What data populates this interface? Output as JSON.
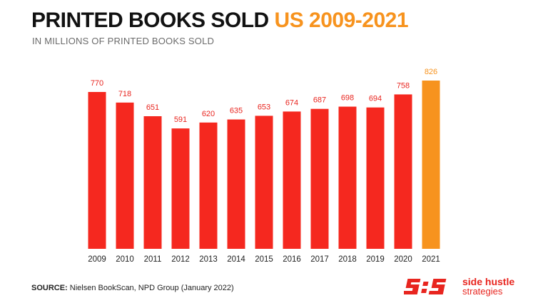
{
  "header": {
    "title_main": "PRINTED BOOKS SOLD ",
    "title_accent": "US 2009-2021",
    "subtitle": "IN MILLIONS OF PRINTED BOOKS SOLD"
  },
  "chart_data": {
    "type": "bar",
    "title": "PRINTED BOOKS SOLD US 2009-2021",
    "subtitle": "IN MILLIONS OF PRINTED BOOKS SOLD",
    "xlabel": "",
    "ylabel": "",
    "categories": [
      "2009",
      "2010",
      "2011",
      "2012",
      "2013",
      "2014",
      "2015",
      "2016",
      "2017",
      "2018",
      "2019",
      "2020",
      "2021"
    ],
    "values": [
      770,
      718,
      651,
      591,
      620,
      635,
      653,
      674,
      687,
      698,
      694,
      758,
      826
    ],
    "ylim": [
      0,
      826
    ],
    "grid": false,
    "highlight_category": "2021",
    "colors": {
      "bar": "#f5281f",
      "highlight": "#f7931e",
      "label": "#e8251f",
      "axis": "#222222"
    }
  },
  "footer": {
    "source_label": "SOURCE:",
    "source_text": " Nielsen BookScan, NPD Group (January 2022)"
  },
  "brand": {
    "icon": "sis-logo-icon",
    "name": "side hustle",
    "tagline": "strategies"
  }
}
